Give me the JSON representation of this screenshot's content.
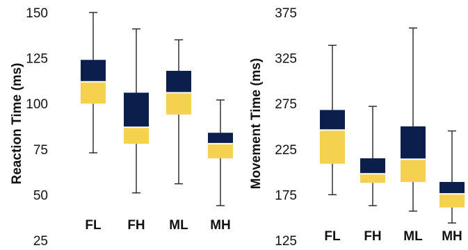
{
  "colors": {
    "upper_box": "#0b1f4e",
    "lower_box": "#f5d14f",
    "median": "#ffffff",
    "whisker": "#222222"
  },
  "chart_data": [
    {
      "type": "box",
      "title": "",
      "xlabel": "",
      "ylabel": "Reaction Time (ms)",
      "ylim": [
        25,
        150
      ],
      "yticks": [
        "25",
        "50",
        "75",
        "100",
        "125",
        "150"
      ],
      "categories": [
        "FL",
        "FH",
        "ML",
        "MH"
      ],
      "boxes": [
        {
          "category": "FL",
          "min": 73,
          "q1": 100,
          "median": 112,
          "q3": 124,
          "max": 150
        },
        {
          "category": "FH",
          "min": 51,
          "q1": 78,
          "median": 87,
          "q3": 106,
          "max": 141
        },
        {
          "category": "ML",
          "min": 56,
          "q1": 94,
          "median": 106,
          "q3": 118,
          "max": 135
        },
        {
          "category": "MH",
          "min": 44,
          "q1": 70,
          "median": 78,
          "q3": 84,
          "max": 102
        }
      ],
      "grid": false
    },
    {
      "type": "box",
      "title": "",
      "xlabel": "",
      "ylabel": "Movement Time (ms)",
      "ylim": [
        125,
        375
      ],
      "yticks": [
        "125",
        "175",
        "225",
        "275",
        "325",
        "375"
      ],
      "categories": [
        "FL",
        "FH",
        "ML",
        "MH"
      ],
      "boxes": [
        {
          "category": "FL",
          "min": 175,
          "q1": 209,
          "median": 246,
          "q3": 268,
          "max": 339
        },
        {
          "category": "FH",
          "min": 163,
          "q1": 188,
          "median": 198,
          "q3": 215,
          "max": 272
        },
        {
          "category": "ML",
          "min": 157,
          "q1": 189,
          "median": 214,
          "q3": 250,
          "max": 358
        },
        {
          "category": "MH",
          "min": 144,
          "q1": 161,
          "median": 176,
          "q3": 189,
          "max": 245
        }
      ],
      "grid": false
    }
  ]
}
